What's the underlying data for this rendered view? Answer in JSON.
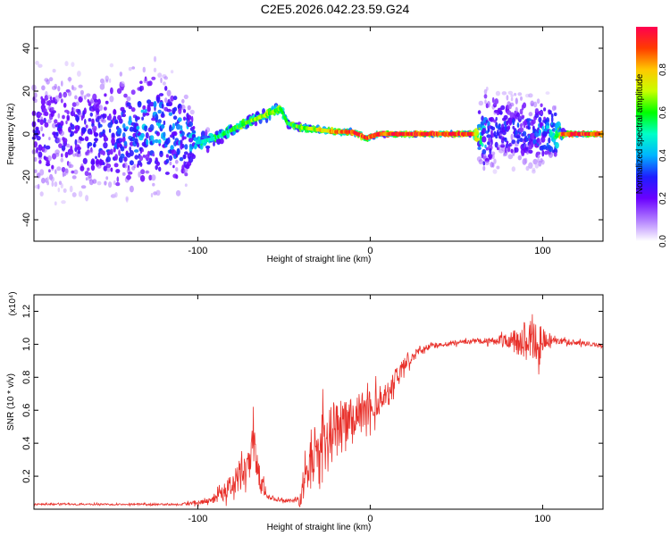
{
  "title": "C2E5.2026.042.23.59.G24",
  "colors": {
    "trace": "#e8302a",
    "frame": "#000000",
    "background": "#ffffff"
  },
  "colorbar": {
    "label": "Normalized spectral amplitude",
    "ticks": [
      "0.0",
      "0.2",
      "0.4",
      "0.6",
      "0.8"
    ],
    "range": [
      0,
      1
    ],
    "colormap": [
      "#ffffff",
      "#b07cff",
      "#6a00ff",
      "#1e1eff",
      "#00b4ff",
      "#00ffc8",
      "#00ff00",
      "#c8ff00",
      "#ffc800",
      "#ff3c00",
      "#ff0050"
    ]
  },
  "chart_data": [
    {
      "type": "heatmap",
      "xlabel": "Height of straight line (km)",
      "ylabel": "Frequency (Hz)",
      "xlim": [
        -195,
        135
      ],
      "ylim": [
        -50,
        50
      ],
      "xticks": [
        -100,
        0,
        100
      ],
      "yticks": [
        -40,
        -20,
        0,
        20,
        40
      ],
      "xtick_labels": [
        "-100",
        "0",
        "100"
      ],
      "ytick_labels": [
        "-40",
        "-20",
        "0",
        "20",
        "40"
      ],
      "ridge": {
        "x": [
          -195,
          -170,
          -150,
          -130,
          -110,
          -100,
          -90,
          -80,
          -70,
          -60,
          -52,
          -48,
          -40,
          -30,
          -20,
          -10,
          -2,
          5,
          20,
          40,
          60,
          66,
          70,
          80,
          90,
          100,
          108,
          112,
          120,
          135
        ],
        "freq": [
          0,
          0,
          -1,
          3,
          0,
          -4,
          -2,
          2,
          6,
          9,
          12,
          5,
          3,
          2,
          1,
          1,
          -2,
          0,
          0,
          0,
          0,
          0,
          1,
          3,
          1,
          1,
          0,
          0,
          0,
          0
        ],
        "amplitude": [
          0.25,
          0.25,
          0.3,
          0.4,
          0.35,
          0.45,
          0.55,
          0.6,
          0.65,
          0.7,
          0.65,
          0.6,
          0.65,
          0.75,
          0.85,
          0.95,
          0.9,
          0.95,
          0.95,
          0.95,
          0.95,
          0.4,
          0.3,
          0.3,
          0.3,
          0.35,
          0.5,
          0.95,
          0.95,
          0.95
        ],
        "spread_hz": [
          45,
          45,
          45,
          45,
          40,
          10,
          6,
          5,
          5,
          5,
          4,
          3,
          3,
          2,
          2,
          2,
          2,
          1,
          1,
          1,
          1,
          30,
          30,
          25,
          25,
          25,
          20,
          2,
          1,
          1
        ]
      }
    },
    {
      "type": "line",
      "xlabel": "Height of straight line (km)",
      "ylabel": "SNR (10 * v/v)",
      "y_multiplier": "(x10⁴)",
      "xlim": [
        -195,
        135
      ],
      "ylim": [
        0,
        1.3
      ],
      "xticks": [
        -100,
        0,
        100
      ],
      "yticks": [
        0.2,
        0.4,
        0.6,
        0.8,
        1.0,
        1.2
      ],
      "xtick_labels": [
        "-100",
        "0",
        "100"
      ],
      "ytick_labels": [
        "0.2",
        "0.4",
        "0.6",
        "0.8",
        "1.0",
        "1.2"
      ],
      "series": [
        {
          "x": [
            -195,
            -150,
            -110,
            -95,
            -85,
            -80,
            -75,
            -70,
            -68,
            -65,
            -60,
            -55,
            -50,
            -45,
            -40,
            -38,
            -35,
            -30,
            -25,
            -20,
            -15,
            -10,
            -5,
            0,
            5,
            10,
            15,
            20,
            25,
            30,
            40,
            50,
            60,
            70,
            80,
            90,
            95,
            100,
            105,
            110,
            120,
            135
          ],
          "values": [
            0.03,
            0.03,
            0.03,
            0.05,
            0.1,
            0.15,
            0.2,
            0.25,
            0.4,
            0.2,
            0.08,
            0.06,
            0.05,
            0.05,
            0.06,
            0.2,
            0.3,
            0.35,
            0.42,
            0.48,
            0.52,
            0.57,
            0.6,
            0.62,
            0.66,
            0.7,
            0.8,
            0.88,
            0.93,
            0.97,
            1.0,
            1.01,
            1.02,
            1.02,
            1.02,
            1.02,
            1.05,
            1.0,
            1.03,
            1.02,
            1.01,
            0.99
          ],
          "noise": [
            0.005,
            0.005,
            0.006,
            0.02,
            0.05,
            0.07,
            0.1,
            0.12,
            0.15,
            0.1,
            0.02,
            0.01,
            0.01,
            0.01,
            0.05,
            0.15,
            0.18,
            0.2,
            0.2,
            0.18,
            0.16,
            0.15,
            0.12,
            0.1,
            0.09,
            0.08,
            0.06,
            0.05,
            0.03,
            0.02,
            0.015,
            0.015,
            0.015,
            0.02,
            0.05,
            0.12,
            0.15,
            0.1,
            0.03,
            0.02,
            0.015,
            0.015
          ]
        }
      ]
    }
  ]
}
